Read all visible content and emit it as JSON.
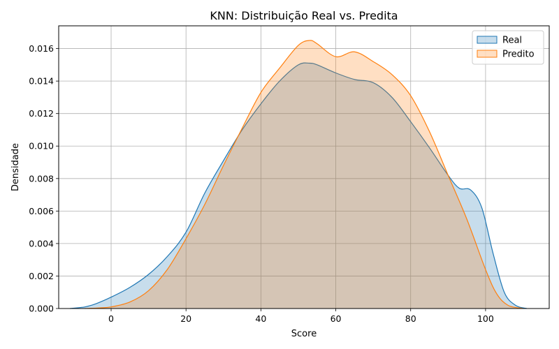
{
  "chart_data": {
    "type": "area",
    "title": "KNN: Distribuição Real vs. Predita",
    "xlabel": "Score",
    "ylabel": "Densidade",
    "xlim": [
      -14,
      117
    ],
    "ylim": [
      0,
      0.0174
    ],
    "xticks": [
      0,
      20,
      40,
      60,
      80,
      100
    ],
    "yticks": [
      0.0,
      0.002,
      0.004,
      0.006,
      0.008,
      0.01,
      0.012,
      0.014,
      0.016
    ],
    "ytick_labels": [
      "0.000",
      "0.002",
      "0.004",
      "0.006",
      "0.008",
      "0.010",
      "0.012",
      "0.014",
      "0.016"
    ],
    "grid": true,
    "legend_position": "top-right",
    "series": [
      {
        "name": "Real",
        "color": "#1f77b4",
        "x": [
          -11,
          -7,
          -4,
          0,
          5,
          10,
          15,
          20,
          25,
          30,
          35,
          40,
          45,
          50,
          53,
          55,
          60,
          65,
          70,
          75,
          80,
          85,
          90,
          93,
          96,
          99,
          102,
          105,
          108,
          111
        ],
        "y": [
          0.0,
          0.0001,
          0.0003,
          0.0007,
          0.0013,
          0.0021,
          0.0032,
          0.0047,
          0.0071,
          0.0091,
          0.011,
          0.0126,
          0.014,
          0.015,
          0.0151,
          0.015,
          0.0145,
          0.0141,
          0.0139,
          0.013,
          0.0115,
          0.0099,
          0.0082,
          0.0074,
          0.0073,
          0.0062,
          0.0034,
          0.001,
          0.0002,
          0.0
        ]
      },
      {
        "name": "Predito",
        "color": "#ff7f0e",
        "x": [
          -7,
          -3,
          0,
          5,
          10,
          15,
          20,
          25,
          30,
          35,
          40,
          45,
          50,
          53,
          55,
          60,
          65,
          70,
          75,
          80,
          85,
          90,
          95,
          100,
          103,
          106,
          110
        ],
        "y": [
          0.0,
          4e-05,
          0.0001,
          0.0004,
          0.0011,
          0.0024,
          0.0043,
          0.0064,
          0.0088,
          0.0111,
          0.0133,
          0.0148,
          0.0162,
          0.0165,
          0.0163,
          0.0155,
          0.0158,
          0.0152,
          0.0144,
          0.0131,
          0.0109,
          0.0082,
          0.0055,
          0.0024,
          0.0009,
          0.0002,
          0.0
        ]
      }
    ]
  }
}
